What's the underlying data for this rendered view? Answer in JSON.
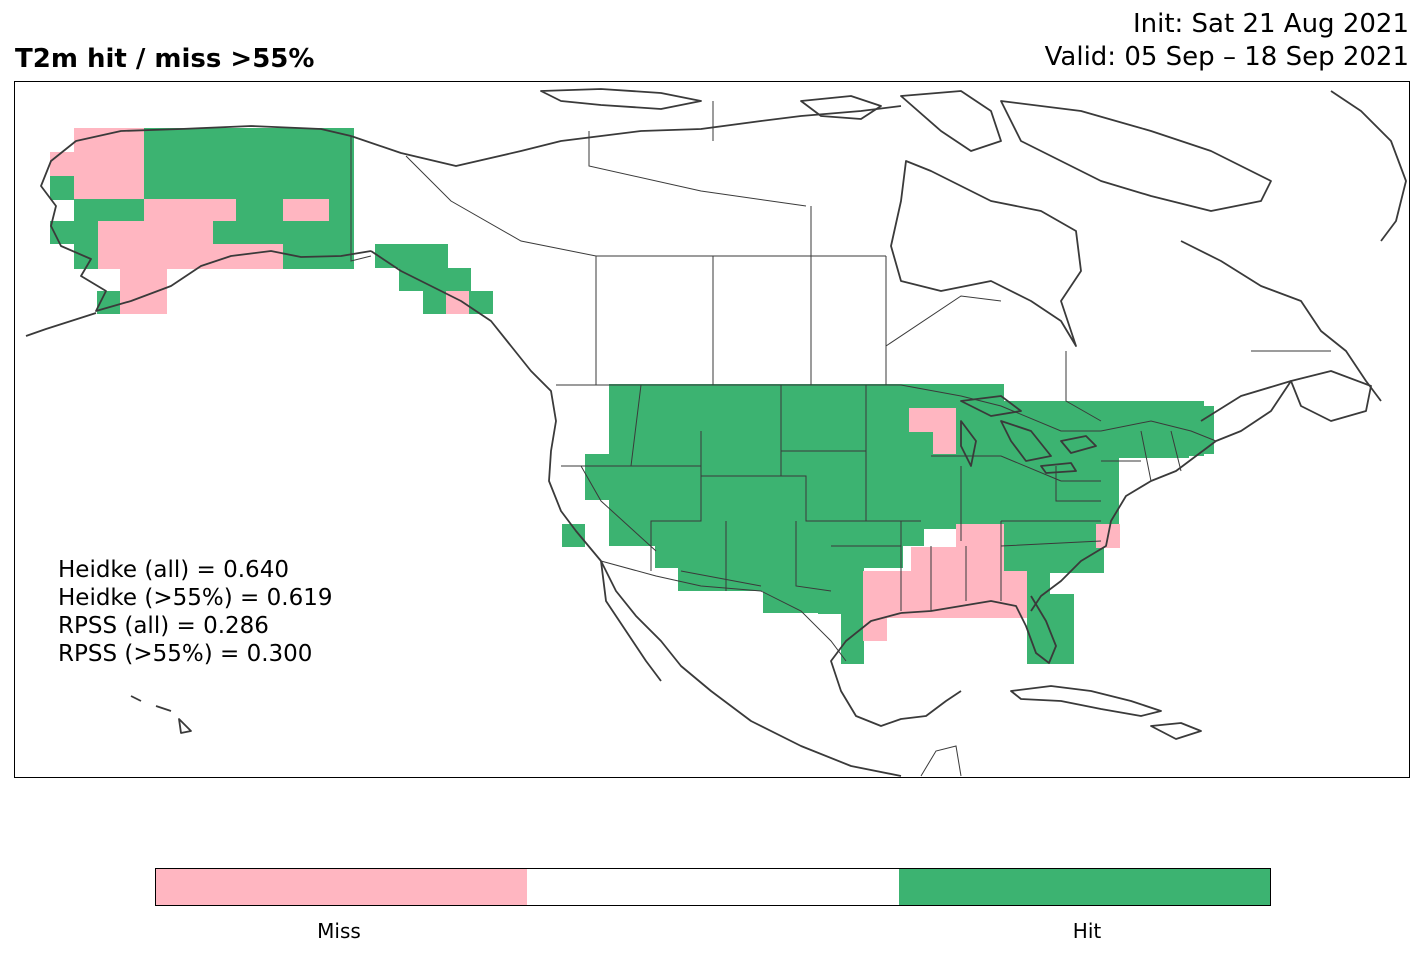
{
  "header": {
    "title": "T2m hit / miss  >55%",
    "init": "Init: Sat 21 Aug 2021",
    "valid": "Valid: 05 Sep – 18 Sep 2021"
  },
  "stats": [
    "Heidke (all) = 0.640",
    "Heidke (>55%) = 0.619",
    "RPSS (all) = 0.286",
    "RPSS (>55%) = 0.300"
  ],
  "colorbar": {
    "segments": [
      "#ffb6c1",
      "#ffffff",
      "#3cb371"
    ],
    "labels": [
      "Miss",
      "Hit"
    ]
  },
  "colors": {
    "miss": "#ffb6c1",
    "hit": "#3cb371",
    "coast": "#3a3a3a"
  }
}
